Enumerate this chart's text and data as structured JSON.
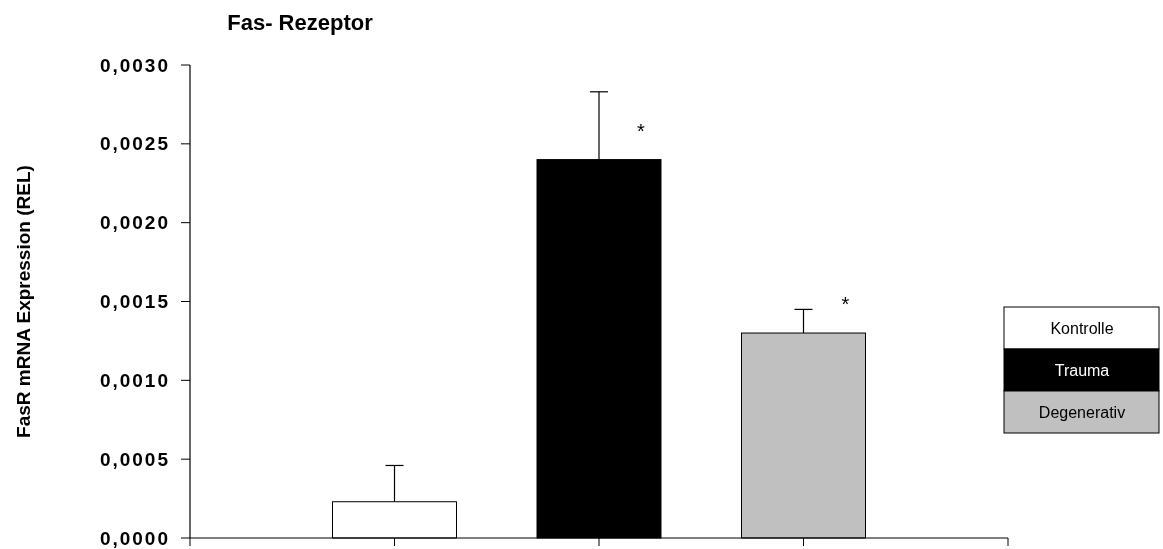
{
  "chart_data": {
    "type": "bar",
    "title": "Fas- Rezeptor",
    "ylabel": "FasR mRNA Expression (REL)",
    "categories": [
      null,
      null,
      null
    ],
    "series": [
      {
        "name": "Kontrolle",
        "color": "#ffffff",
        "values": [
          0.00023,
          null,
          null
        ],
        "errors": [
          [
            0.00023,
            0.00046
          ],
          null,
          null
        ]
      },
      {
        "name": "Trauma",
        "color": "#000000",
        "values": [
          null,
          0.0024,
          null
        ],
        "errors": [
          null,
          [
            0.0024,
            0.00283
          ],
          null
        ]
      },
      {
        "name": "Degenerativ",
        "color": "#c0c0c0",
        "values": [
          null,
          null,
          0.0013
        ],
        "errors": [
          null,
          null,
          [
            0.0013,
            0.00145
          ]
        ]
      }
    ],
    "ylim": [
      0,
      0.003
    ],
    "yticks": [
      {
        "value": 0,
        "label": "0,0000"
      },
      {
        "value": 0.0005,
        "label": "0,0005"
      },
      {
        "value": 0.001,
        "label": "0,0010"
      },
      {
        "value": 0.0015,
        "label": "0,0015"
      },
      {
        "value": 0.002,
        "label": "0,0020"
      },
      {
        "value": 0.0025,
        "label": "0,0025"
      },
      {
        "value": 0.003,
        "label": "0,0030"
      }
    ],
    "annotations": [
      "*",
      "*"
    ],
    "legend": "right",
    "grid": false
  }
}
